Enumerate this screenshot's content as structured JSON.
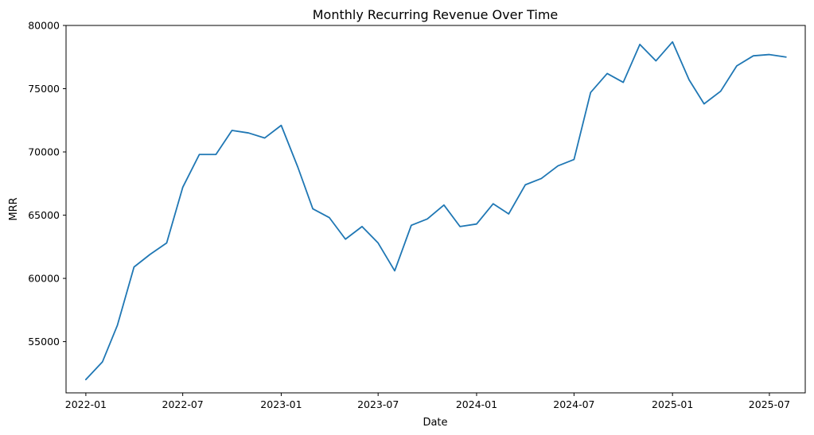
{
  "chart_data": {
    "type": "line",
    "title": "Monthly Recurring Revenue Over Time",
    "xlabel": "Date",
    "ylabel": "MRR",
    "ylim": [
      50950,
      80000
    ],
    "xlim": [
      "2021-11-25",
      "2025-09-06"
    ],
    "grid": false,
    "x_ticks": [
      "2022-01",
      "2022-07",
      "2023-01",
      "2023-07",
      "2024-01",
      "2024-07",
      "2025-01",
      "2025-07"
    ],
    "y_ticks": [
      55000,
      60000,
      65000,
      70000,
      75000,
      80000
    ],
    "colors": {
      "line": "#1f77b4"
    },
    "series": [
      {
        "x": [
          "2022-01",
          "2022-02",
          "2022-03",
          "2022-04",
          "2022-05",
          "2022-06",
          "2022-07",
          "2022-08",
          "2022-09",
          "2022-10",
          "2022-11",
          "2022-12",
          "2023-01",
          "2023-02",
          "2023-03",
          "2023-04",
          "2023-05",
          "2023-06",
          "2023-07",
          "2023-08",
          "2023-09",
          "2023-10",
          "2023-11",
          "2023-12",
          "2024-01",
          "2024-02",
          "2024-03",
          "2024-04",
          "2024-05",
          "2024-06",
          "2024-07",
          "2024-08",
          "2024-09",
          "2024-10",
          "2024-11",
          "2024-12",
          "2025-01",
          "2025-02",
          "2025-03",
          "2025-04",
          "2025-05",
          "2025-06",
          "2025-07",
          "2025-08"
        ],
        "values": [
          52000,
          53400,
          56300,
          60900,
          61900,
          62800,
          67200,
          69800,
          69800,
          71700,
          71500,
          71100,
          72100,
          68800,
          65500,
          64800,
          63100,
          64100,
          62800,
          60600,
          64200,
          64700,
          65800,
          64100,
          64300,
          65900,
          65100,
          67400,
          67900,
          68900,
          69400,
          74700,
          76200,
          75500,
          78500,
          77200,
          78700,
          75700,
          73800,
          74800,
          76800,
          77600,
          77700,
          77500
        ]
      }
    ]
  }
}
